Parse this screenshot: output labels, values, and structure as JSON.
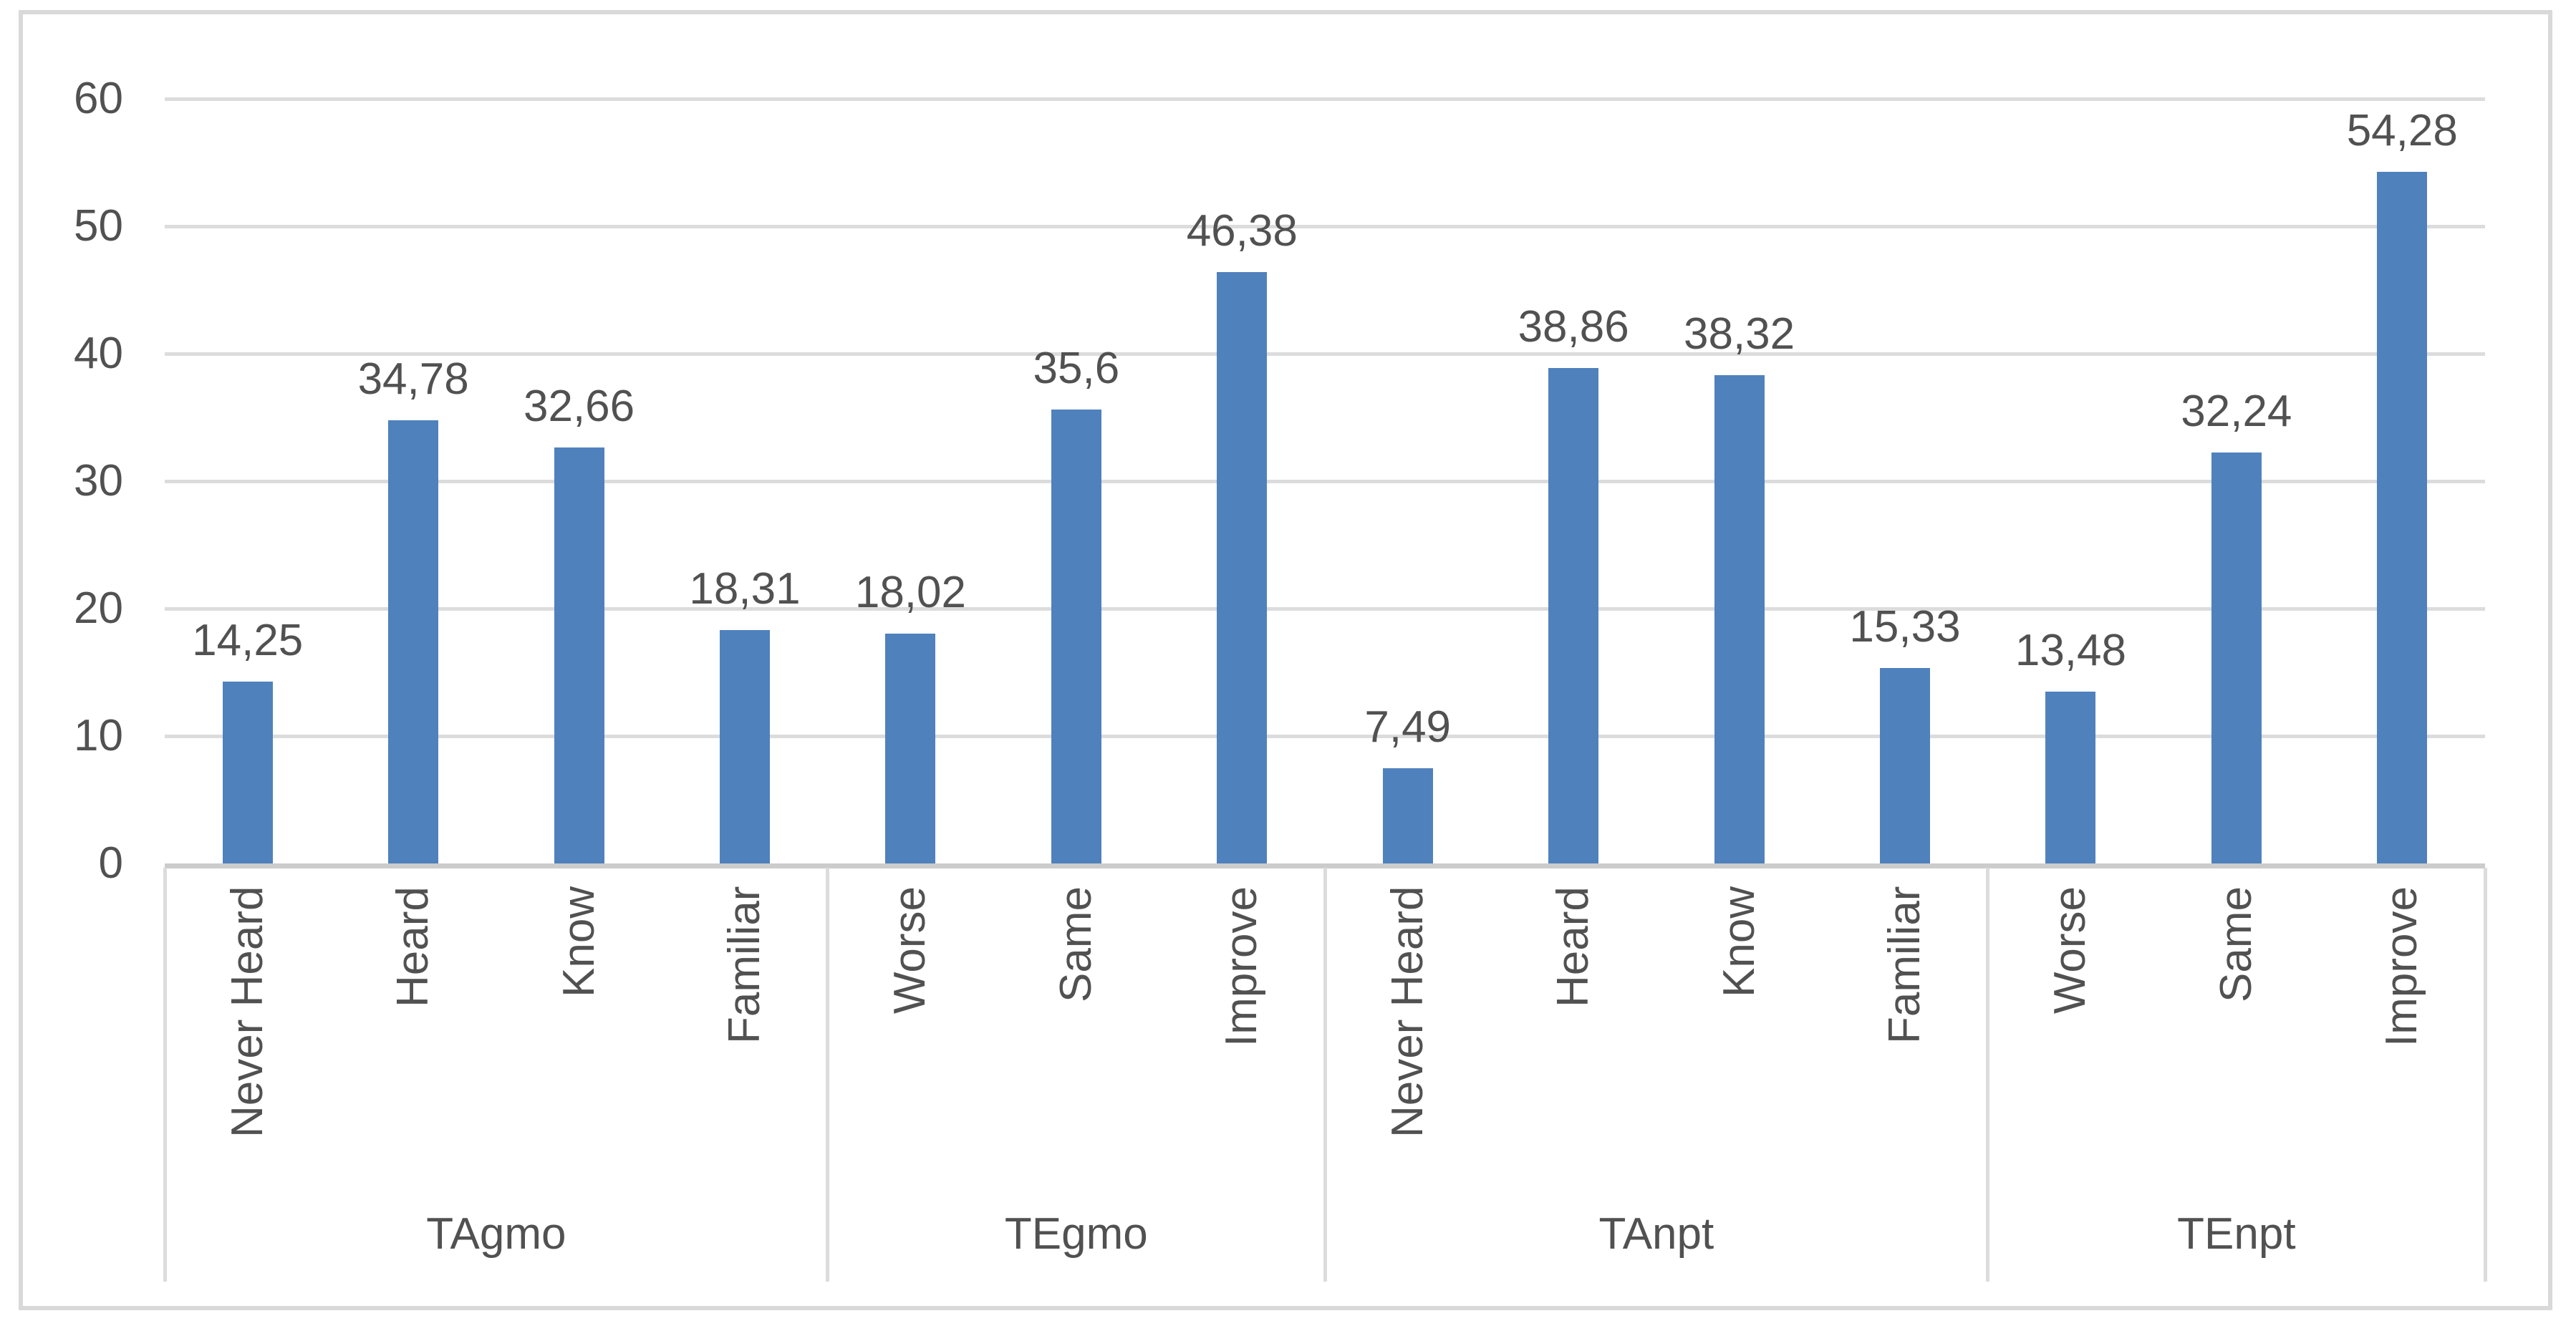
{
  "chart_data": {
    "type": "bar",
    "title": "",
    "xlabel": "",
    "ylabel": "",
    "ylim": [
      0,
      60
    ],
    "ytick_interval": 10,
    "yticks": [
      "0",
      "10",
      "20",
      "30",
      "40",
      "50",
      "60"
    ],
    "grid": true,
    "legend": "none",
    "decimal_separator": ",",
    "bar_color": "#4f81bd",
    "gridline_color": "#d9d9d9",
    "text_color": "#515151",
    "groups": [
      {
        "label": "TAgmo",
        "categories": [
          "Never Heard",
          "Heard",
          "Know",
          "Familiar"
        ],
        "values": [
          14.25,
          34.78,
          32.66,
          18.31
        ],
        "value_labels": [
          "14,25",
          "34,78",
          "32,66",
          "18,31"
        ]
      },
      {
        "label": "TEgmo",
        "categories": [
          "Worse",
          "Same",
          "Improve"
        ],
        "values": [
          18.02,
          35.6,
          46.38
        ],
        "value_labels": [
          "18,02",
          "35,6",
          "46,38"
        ]
      },
      {
        "label": "TAnpt",
        "categories": [
          "Never Heard",
          "Heard",
          "Know",
          "Familiar"
        ],
        "values": [
          7.49,
          38.86,
          38.32,
          15.33
        ],
        "value_labels": [
          "7,49",
          "38,86",
          "38,32",
          "15,33"
        ]
      },
      {
        "label": "TEnpt",
        "categories": [
          "Worse",
          "Same",
          "Improve"
        ],
        "values": [
          13.48,
          32.24,
          54.28
        ],
        "value_labels": [
          "13,48",
          "32,24",
          "54,28"
        ]
      }
    ]
  }
}
